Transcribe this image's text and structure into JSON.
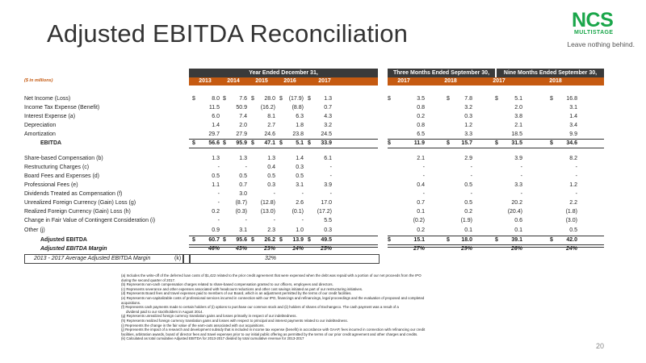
{
  "title": "Adjusted EBITDA Reconciliation",
  "logo": {
    "name": "NCS",
    "sub": "MULTISTAGE",
    "tagline": "Leave nothing behind."
  },
  "header": {
    "year_band": "Year Ended December 31,",
    "q3_band": "Three Months Ended September 30,",
    "nine_band": "Nine Months Ended September 30,",
    "units": "($ in millions)",
    "columns": [
      "2013",
      "2014",
      "2015",
      "2016",
      "2017",
      "2017",
      "2018",
      "2017",
      "2018"
    ]
  },
  "rows": [
    {
      "label": "Net Income (Loss)",
      "values": [
        "8.0",
        "7.6",
        "28.0",
        "(17.9)",
        "1.3",
        "3.5",
        "7.8",
        "5.1",
        "16.8"
      ],
      "dollar": true
    },
    {
      "label": "Income Tax Expense (Benefit)",
      "values": [
        "11.5",
        "50.9",
        "(16.2)",
        "(8.8)",
        "0.7",
        "0.8",
        "3.2",
        "2.0",
        "3.1"
      ]
    },
    {
      "label": "Interest Expense (a)",
      "values": [
        "6.0",
        "7.4",
        "8.1",
        "6.3",
        "4.3",
        "0.2",
        "0.3",
        "3.8",
        "1.4"
      ]
    },
    {
      "label": "Depreciation",
      "values": [
        "1.4",
        "2.0",
        "2.7",
        "1.8",
        "3.2",
        "0.8",
        "1.2",
        "2.1",
        "3.4"
      ]
    },
    {
      "label": "Amortization",
      "values": [
        "29.7",
        "27.9",
        "24.6",
        "23.8",
        "24.5",
        "6.5",
        "3.3",
        "18.5",
        "9.9"
      ]
    },
    {
      "label": "EBITDA",
      "values": [
        "56.6",
        "95.9",
        "47.1",
        "5.1",
        "33.9",
        "11.9",
        "15.7",
        "31.5",
        "34.6"
      ],
      "dollar": true,
      "bold": true,
      "indent": true
    },
    {
      "label": "Share-based Compensation (b)",
      "values": [
        "1.3",
        "1.3",
        "1.3",
        "1.4",
        "6.1",
        "2.1",
        "2.9",
        "3.9",
        "8.2"
      ]
    },
    {
      "label": "Restructuring Charges (c)",
      "values": [
        "-",
        "-",
        "0.4",
        "0.3",
        "-",
        "-",
        "-",
        "-",
        "-"
      ]
    },
    {
      "label": "Board Fees and Expenses (d)",
      "values": [
        "0.5",
        "0.5",
        "0.5",
        "0.5",
        "-",
        "-",
        "-",
        "-",
        "-"
      ]
    },
    {
      "label": "Professional Fees (e)",
      "values": [
        "1.1",
        "0.7",
        "0.3",
        "3.1",
        "3.9",
        "0.4",
        "0.5",
        "3.3",
        "1.2"
      ]
    },
    {
      "label": "Dividends Treated as Compensation (f)",
      "values": [
        "-",
        "3.0",
        "-",
        "-",
        "-",
        "-",
        "-",
        "-",
        "-"
      ]
    },
    {
      "label": "Unrealized Foreign Currency (Gain) Loss (g)",
      "values": [
        "-",
        "(8.7)",
        "(12.8)",
        "2.6",
        "17.0",
        "0.7",
        "0.5",
        "20.2",
        "2.2"
      ]
    },
    {
      "label": "Realized Foreign Currency (Gain) Loss (h)",
      "values": [
        "0.2",
        "(0.3)",
        "(13.0)",
        "(0.1)",
        "(17.2)",
        "0.1",
        "0.2",
        "(20.4)",
        "(1.8)"
      ]
    },
    {
      "label": "Change in Fair Value of Contingent Consideration (i)",
      "values": [
        "-",
        "-",
        "-",
        "-",
        "5.5",
        "(0.2)",
        "(1.9)",
        "0.6",
        "(3.0)"
      ]
    },
    {
      "label": "Other (j)",
      "values": [
        "0.9",
        "3.1",
        "2.3",
        "1.0",
        "0.3",
        "0.2",
        "0.1",
        "0.1",
        "0.5"
      ]
    },
    {
      "label": "Adjusted EBITDA",
      "values": [
        "60.7",
        "95.6",
        "26.2",
        "13.9",
        "49.5",
        "15.1",
        "18.0",
        "39.1",
        "42.0"
      ],
      "dollar": true,
      "bold": true,
      "indent": true
    },
    {
      "label": "Adjusted EBITDA Margin",
      "values": [
        "46%",
        "43%",
        "23%",
        "14%",
        "25%",
        "27%",
        "29%",
        "26%",
        "24%"
      ],
      "bold": true,
      "italic": true,
      "indent": true
    }
  ],
  "avg_row": {
    "label": "2013 - 2017 Average Adjusted EBITDA Margin",
    "ref": "(k)",
    "value": "32%"
  },
  "footnotes": [
    "(a) Includes the write-off of the deferred loan costs of $1,422 related to the prior credit agreement that were expensed when the debt was repaid with a portion of our net proceeds from the IPO",
    "during the second quarter of 2017.",
    "(b) Represents non-cash compensation charges related to share-based compensation granted to our officers, employees and directors.",
    "(c) Represents severance and other expenses associated with headcount reductions and other cost savings initiated as part of our restructuring initiatives.",
    "(d) Represents Board fees and travel expenses paid to members of our Board, which is an adjustment permitted by the terms of our credit facilities.",
    "(e) Represents non-capitalizable costs of professional services incurred in connection with our IPO, financings and refinancings, legal proceedings and the evaluation of proposed and completed",
    "acquisitions.",
    "(f) Represents cash payments made to certain holders of (i) options to purchase our common stock and (ii) holders of shares of Exchangeco. The cash payment was a result of a",
    "dividend paid to our stockholders in August 2014.",
    "(g) Represents unrealized foreign currency translation gains and losses primarily in respect of our indebtedness.",
    "(h) Represents realized foreign currency translation gains and losses with respect to principal and interest payments related to our indebtedness.",
    "(i) Represents the change in the fair value of the earn-outs associated with our acquisitions.",
    "(j) Represents the impact of a research and development subsidy that is included in income tax expense (benefit) in accordance with GAAP, fees incurred in connection with refinancing our credit",
    "facilities, arbitration awards, board of director fees and travel expenses prior to our initial public offering as permitted by the terms of our prior credit agreement and other charges and credits.",
    "(k) Calculated as total cumulative Adjusted EBITDA for 2013-2017 divided by total cumulative revenue for 2013-2017"
  ],
  "page_number": "20"
}
